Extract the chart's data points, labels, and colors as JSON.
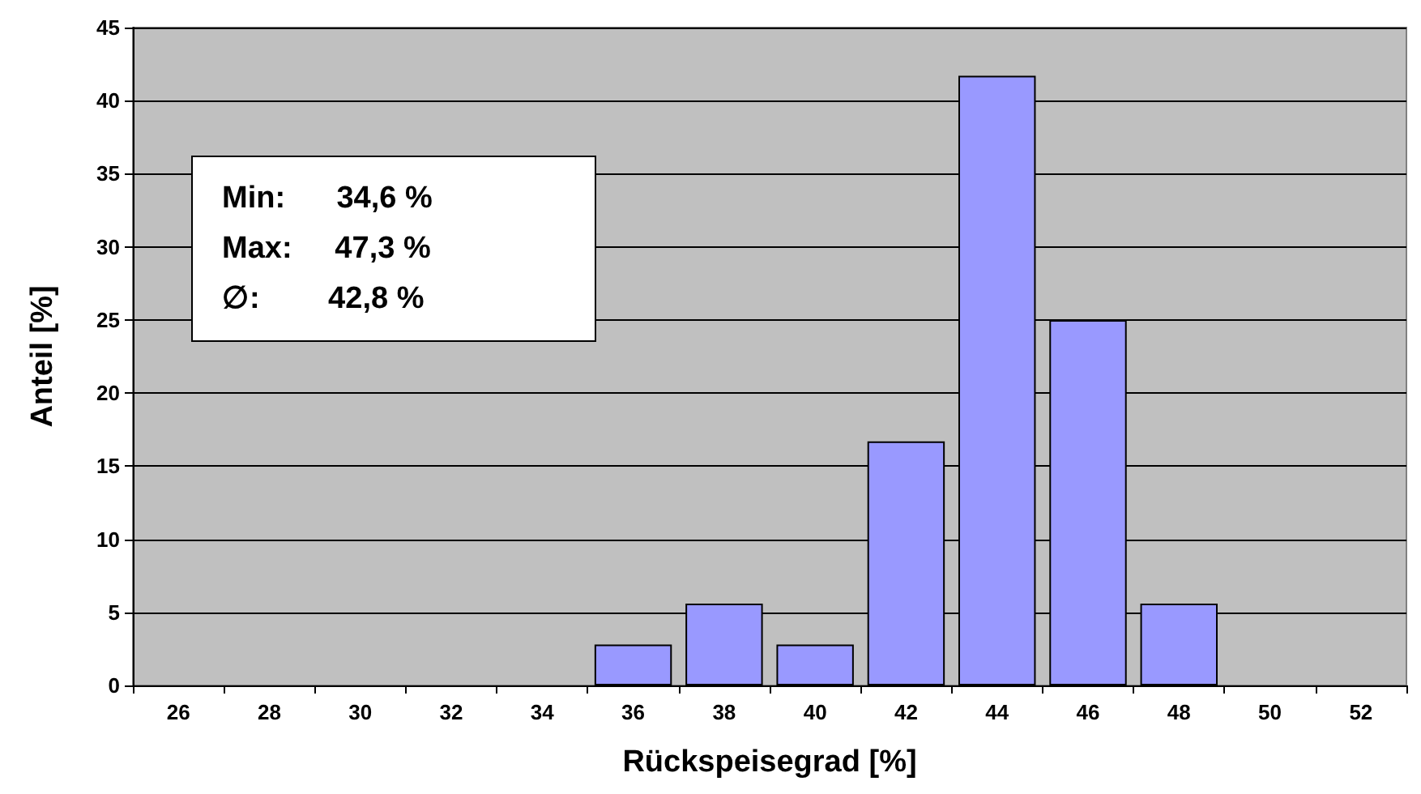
{
  "chart_data": {
    "type": "bar",
    "xlabel": "Rückspeisegrad [%]",
    "ylabel": "Anteil [%]",
    "categories": [
      "26",
      "28",
      "30",
      "32",
      "34",
      "36",
      "38",
      "40",
      "42",
      "44",
      "46",
      "48",
      "50",
      "52"
    ],
    "values": [
      0,
      0,
      0,
      0,
      0,
      2.8,
      5.6,
      2.8,
      16.7,
      41.7,
      25,
      5.6,
      0,
      0
    ],
    "color": "#9999ff",
    "ylim": [
      0,
      45
    ],
    "yticks": [
      0,
      5,
      10,
      15,
      20,
      25,
      30,
      35,
      40,
      45
    ],
    "grid": "y",
    "annotations": [
      "Min:      34,6 %",
      "Max:     47,3 %",
      "∅:        42,8 %"
    ]
  }
}
